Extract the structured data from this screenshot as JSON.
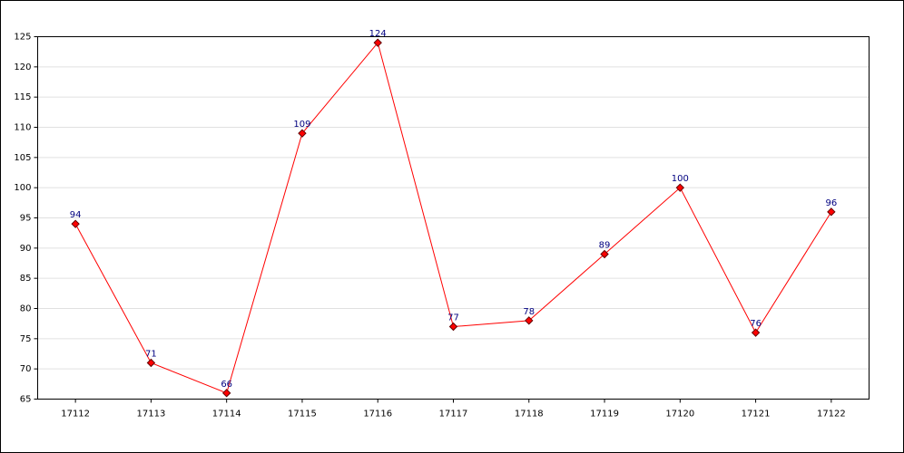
{
  "chart_data": {
    "type": "line",
    "categories": [
      "17112",
      "17113",
      "17114",
      "17115",
      "17116",
      "17117",
      "17118",
      "17119",
      "17120",
      "17121",
      "17122"
    ],
    "values": [
      94,
      71,
      66,
      109,
      124,
      77,
      78,
      89,
      100,
      76,
      96
    ],
    "color": "#ff0000",
    "ylim": [
      65,
      125
    ],
    "yticks": [
      65,
      70,
      75,
      80,
      85,
      90,
      95,
      100,
      105,
      110,
      115,
      120,
      125
    ],
    "grid": true
  }
}
